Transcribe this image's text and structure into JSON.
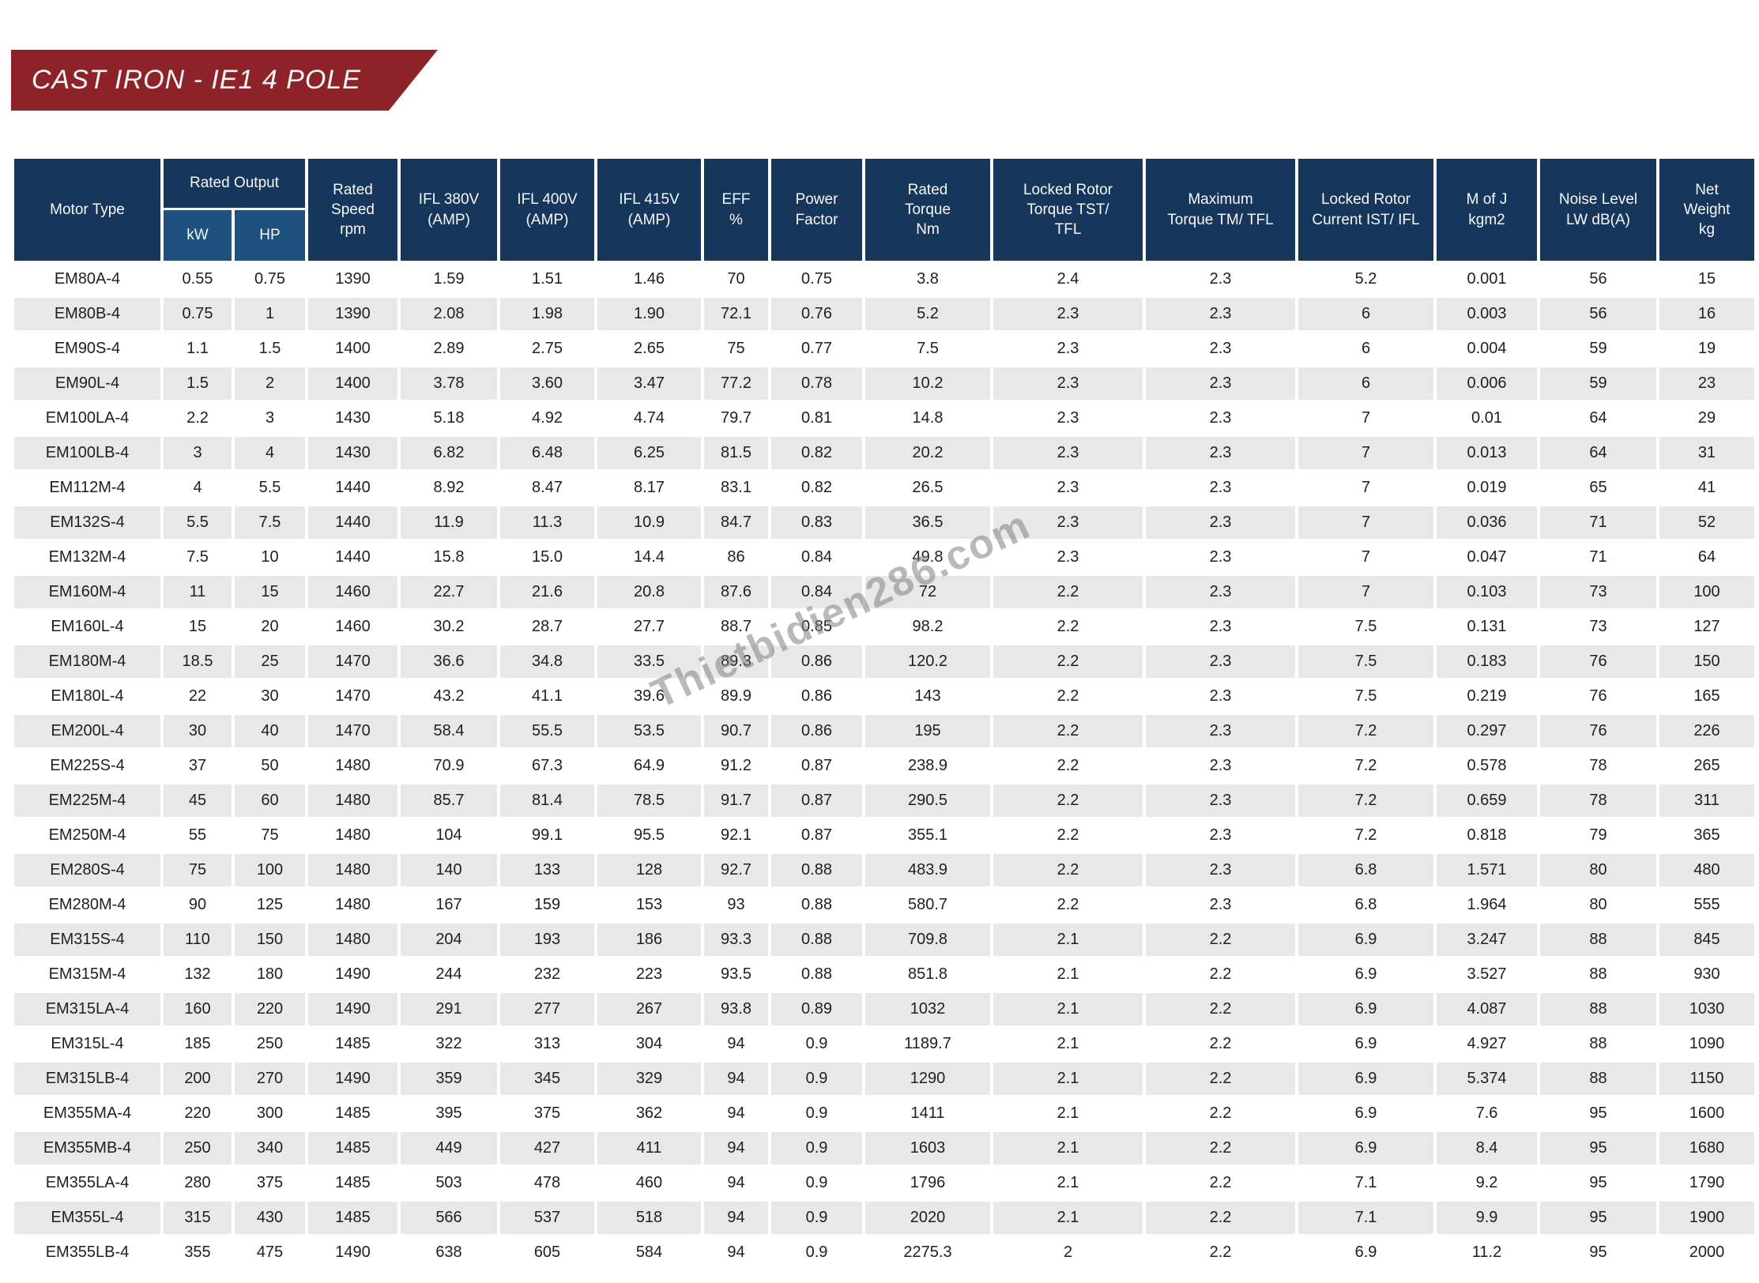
{
  "page_title": "CAST IRON - IE1 4 POLE",
  "watermark": "Thietbidien286.com",
  "colors": {
    "banner": "#8D2329",
    "header": "#16365C",
    "subheader": "#1E5080",
    "stripe": "#E8E8E8",
    "text": "#1F1F1F",
    "header_text": "#F7F7F7"
  },
  "table": {
    "headers": {
      "motor_type": "Motor Type",
      "rated_output": "Rated Output",
      "kw": "kW",
      "hp": "HP",
      "rated_speed": "Rated Speed rpm",
      "ifl_380": "IFL 380V (AMP)",
      "ifl_400": "IFL 400V (AMP)",
      "ifl_415": "IFL 415V (AMP)",
      "eff": "EFF %",
      "power_factor": "Power Factor",
      "rated_torque": "Rated Torque Nm",
      "locked_rotor_torque": "Locked Rotor Torque TST/ TFL",
      "max_torque": "Maximum Torque TM/ TFL",
      "locked_rotor_current": "Locked Rotor Current IST/ IFL",
      "m_of_j": "M of J kgm2",
      "noise_level": "Noise Level LW dB(A)",
      "net_weight": "Net Weight kg"
    },
    "rows": [
      [
        "EM80A-4",
        "0.55",
        "0.75",
        "1390",
        "1.59",
        "1.51",
        "1.46",
        "70",
        "0.75",
        "3.8",
        "2.4",
        "2.3",
        "5.2",
        "0.001",
        "56",
        "15"
      ],
      [
        "EM80B-4",
        "0.75",
        "1",
        "1390",
        "2.08",
        "1.98",
        "1.90",
        "72.1",
        "0.76",
        "5.2",
        "2.3",
        "2.3",
        "6",
        "0.003",
        "56",
        "16"
      ],
      [
        "EM90S-4",
        "1.1",
        "1.5",
        "1400",
        "2.89",
        "2.75",
        "2.65",
        "75",
        "0.77",
        "7.5",
        "2.3",
        "2.3",
        "6",
        "0.004",
        "59",
        "19"
      ],
      [
        "EM90L-4",
        "1.5",
        "2",
        "1400",
        "3.78",
        "3.60",
        "3.47",
        "77.2",
        "0.78",
        "10.2",
        "2.3",
        "2.3",
        "6",
        "0.006",
        "59",
        "23"
      ],
      [
        "EM100LA-4",
        "2.2",
        "3",
        "1430",
        "5.18",
        "4.92",
        "4.74",
        "79.7",
        "0.81",
        "14.8",
        "2.3",
        "2.3",
        "7",
        "0.01",
        "64",
        "29"
      ],
      [
        "EM100LB-4",
        "3",
        "4",
        "1430",
        "6.82",
        "6.48",
        "6.25",
        "81.5",
        "0.82",
        "20.2",
        "2.3",
        "2.3",
        "7",
        "0.013",
        "64",
        "31"
      ],
      [
        "EM112M-4",
        "4",
        "5.5",
        "1440",
        "8.92",
        "8.47",
        "8.17",
        "83.1",
        "0.82",
        "26.5",
        "2.3",
        "2.3",
        "7",
        "0.019",
        "65",
        "41"
      ],
      [
        "EM132S-4",
        "5.5",
        "7.5",
        "1440",
        "11.9",
        "11.3",
        "10.9",
        "84.7",
        "0.83",
        "36.5",
        "2.3",
        "2.3",
        "7",
        "0.036",
        "71",
        "52"
      ],
      [
        "EM132M-4",
        "7.5",
        "10",
        "1440",
        "15.8",
        "15.0",
        "14.4",
        "86",
        "0.84",
        "49.8",
        "2.3",
        "2.3",
        "7",
        "0.047",
        "71",
        "64"
      ],
      [
        "EM160M-4",
        "11",
        "15",
        "1460",
        "22.7",
        "21.6",
        "20.8",
        "87.6",
        "0.84",
        "72",
        "2.2",
        "2.3",
        "7",
        "0.103",
        "73",
        "100"
      ],
      [
        "EM160L-4",
        "15",
        "20",
        "1460",
        "30.2",
        "28.7",
        "27.7",
        "88.7",
        "0.85",
        "98.2",
        "2.2",
        "2.3",
        "7.5",
        "0.131",
        "73",
        "127"
      ],
      [
        "EM180M-4",
        "18.5",
        "25",
        "1470",
        "36.6",
        "34.8",
        "33.5",
        "89.3",
        "0.86",
        "120.2",
        "2.2",
        "2.3",
        "7.5",
        "0.183",
        "76",
        "150"
      ],
      [
        "EM180L-4",
        "22",
        "30",
        "1470",
        "43.2",
        "41.1",
        "39.6",
        "89.9",
        "0.86",
        "143",
        "2.2",
        "2.3",
        "7.5",
        "0.219",
        "76",
        "165"
      ],
      [
        "EM200L-4",
        "30",
        "40",
        "1470",
        "58.4",
        "55.5",
        "53.5",
        "90.7",
        "0.86",
        "195",
        "2.2",
        "2.3",
        "7.2",
        "0.297",
        "76",
        "226"
      ],
      [
        "EM225S-4",
        "37",
        "50",
        "1480",
        "70.9",
        "67.3",
        "64.9",
        "91.2",
        "0.87",
        "238.9",
        "2.2",
        "2.3",
        "7.2",
        "0.578",
        "78",
        "265"
      ],
      [
        "EM225M-4",
        "45",
        "60",
        "1480",
        "85.7",
        "81.4",
        "78.5",
        "91.7",
        "0.87",
        "290.5",
        "2.2",
        "2.3",
        "7.2",
        "0.659",
        "78",
        "311"
      ],
      [
        "EM250M-4",
        "55",
        "75",
        "1480",
        "104",
        "99.1",
        "95.5",
        "92.1",
        "0.87",
        "355.1",
        "2.2",
        "2.3",
        "7.2",
        "0.818",
        "79",
        "365"
      ],
      [
        "EM280S-4",
        "75",
        "100",
        "1480",
        "140",
        "133",
        "128",
        "92.7",
        "0.88",
        "483.9",
        "2.2",
        "2.3",
        "6.8",
        "1.571",
        "80",
        "480"
      ],
      [
        "EM280M-4",
        "90",
        "125",
        "1480",
        "167",
        "159",
        "153",
        "93",
        "0.88",
        "580.7",
        "2.2",
        "2.3",
        "6.8",
        "1.964",
        "80",
        "555"
      ],
      [
        "EM315S-4",
        "110",
        "150",
        "1480",
        "204",
        "193",
        "186",
        "93.3",
        "0.88",
        "709.8",
        "2.1",
        "2.2",
        "6.9",
        "3.247",
        "88",
        "845"
      ],
      [
        "EM315M-4",
        "132",
        "180",
        "1490",
        "244",
        "232",
        "223",
        "93.5",
        "0.88",
        "851.8",
        "2.1",
        "2.2",
        "6.9",
        "3.527",
        "88",
        "930"
      ],
      [
        "EM315LA-4",
        "160",
        "220",
        "1490",
        "291",
        "277",
        "267",
        "93.8",
        "0.89",
        "1032",
        "2.1",
        "2.2",
        "6.9",
        "4.087",
        "88",
        "1030"
      ],
      [
        "EM315L-4",
        "185",
        "250",
        "1485",
        "322",
        "313",
        "304",
        "94",
        "0.9",
        "1189.7",
        "2.1",
        "2.2",
        "6.9",
        "4.927",
        "88",
        "1090"
      ],
      [
        "EM315LB-4",
        "200",
        "270",
        "1490",
        "359",
        "345",
        "329",
        "94",
        "0.9",
        "1290",
        "2.1",
        "2.2",
        "6.9",
        "5.374",
        "88",
        "1150"
      ],
      [
        "EM355MA-4",
        "220",
        "300",
        "1485",
        "395",
        "375",
        "362",
        "94",
        "0.9",
        "1411",
        "2.1",
        "2.2",
        "6.9",
        "7.6",
        "95",
        "1600"
      ],
      [
        "EM355MB-4",
        "250",
        "340",
        "1485",
        "449",
        "427",
        "411",
        "94",
        "0.9",
        "1603",
        "2.1",
        "2.2",
        "6.9",
        "8.4",
        "95",
        "1680"
      ],
      [
        "EM355LA-4",
        "280",
        "375",
        "1485",
        "503",
        "478",
        "460",
        "94",
        "0.9",
        "1796",
        "2.1",
        "2.2",
        "7.1",
        "9.2",
        "95",
        "1790"
      ],
      [
        "EM355L-4",
        "315",
        "430",
        "1485",
        "566",
        "537",
        "518",
        "94",
        "0.9",
        "2020",
        "2.1",
        "2.2",
        "7.1",
        "9.9",
        "95",
        "1900"
      ],
      [
        "EM355LB-4",
        "355",
        "475",
        "1490",
        "638",
        "605",
        "584",
        "94",
        "0.9",
        "2275.3",
        "2",
        "2.2",
        "6.9",
        "11.2",
        "95",
        "2000"
      ]
    ]
  }
}
